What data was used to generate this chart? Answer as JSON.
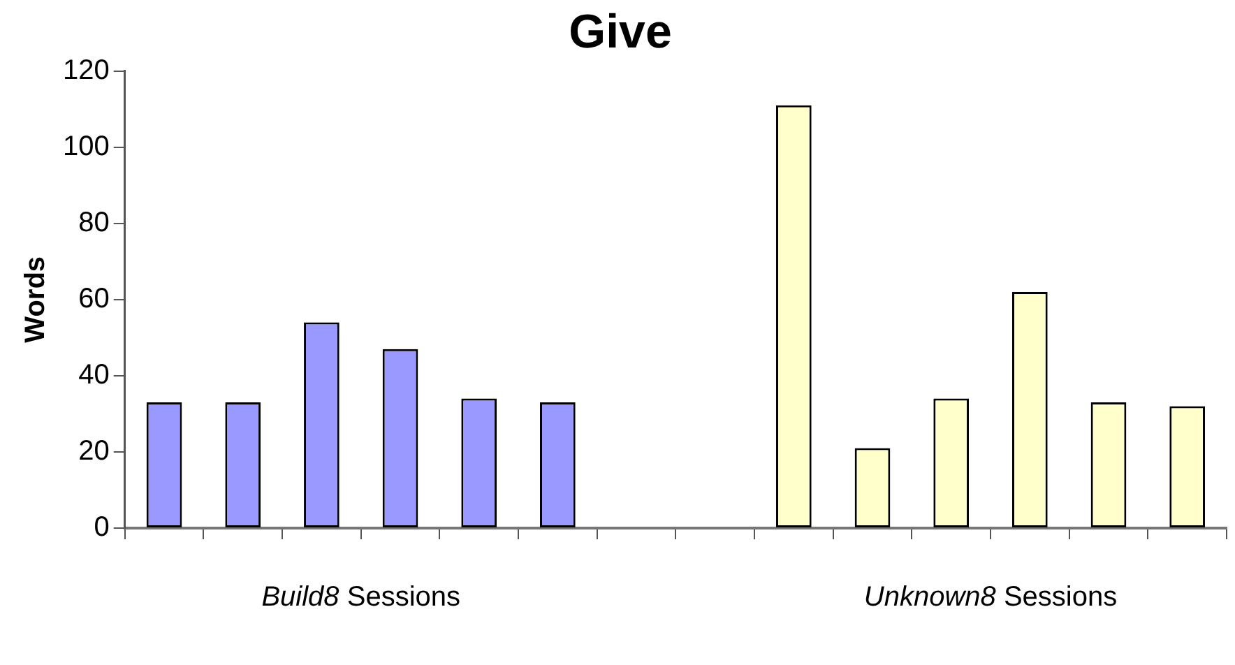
{
  "chart_data": {
    "type": "bar",
    "title": "Give",
    "ylabel": "Words",
    "categories": [
      null,
      null,
      null,
      null,
      null,
      null,
      null,
      null,
      null,
      null,
      null,
      null,
      null,
      null
    ],
    "values": [
      33,
      33,
      54,
      47,
      34,
      33,
      null,
      null,
      111,
      21,
      34,
      62,
      33,
      32
    ],
    "colors": [
      "#9999ff",
      "#9999ff",
      "#9999ff",
      "#9999ff",
      "#9999ff",
      "#9999ff",
      "#9999ff",
      "#ffffcc",
      "#ffffcc",
      "#ffffcc",
      "#ffffcc",
      "#ffffcc",
      "#ffffcc",
      "#ffffcc"
    ],
    "ylim": [
      0,
      120
    ],
    "yticks": [
      0,
      20,
      40,
      60,
      80,
      100,
      120
    ],
    "grid": false,
    "legend": false,
    "annotations": [
      "Build8 Sessions",
      "Unknown8 Sessions"
    ]
  }
}
